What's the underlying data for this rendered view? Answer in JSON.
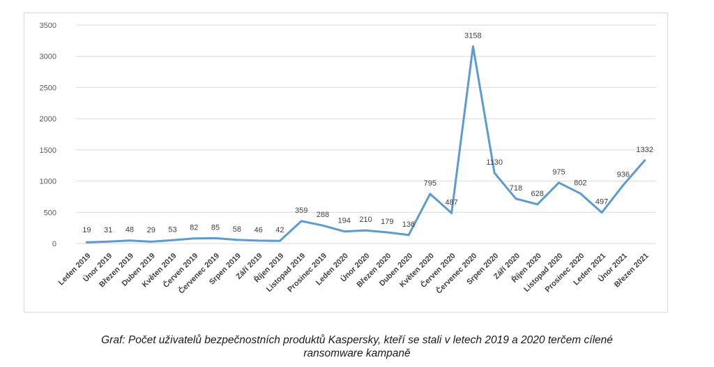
{
  "chart_data": {
    "type": "line",
    "categories": [
      "Leden 2019",
      "Únor 2019",
      "Březen 2019",
      "Duben 2019",
      "Květen 2019",
      "Červen 2019",
      "Červenec 2019",
      "Srpen 2019",
      "Září 2019",
      "Říjen 2019",
      "Listopad 2019",
      "Prosinec 2019",
      "Leden 2020",
      "Únor 2020",
      "Březen 2020",
      "Duben 2020",
      "Květen 2020",
      "Červen 2020",
      "Červenec 2020",
      "Srpen 2020",
      "Září 2020",
      "Říjen 2020",
      "Listopad 2020",
      "Prosinec 2020",
      "Leden 2021",
      "Únor 2021",
      "Březen 2021"
    ],
    "values": [
      19,
      31,
      48,
      29,
      53,
      82,
      85,
      58,
      46,
      42,
      359,
      288,
      194,
      210,
      179,
      136,
      795,
      487,
      3158,
      1130,
      718,
      628,
      975,
      802,
      497,
      936,
      1332
    ],
    "y_ticks": [
      0,
      500,
      1000,
      1500,
      2000,
      2500,
      3000,
      3500
    ],
    "ylim": [
      0,
      3500
    ],
    "grid": true,
    "title": "",
    "xlabel": "",
    "ylabel": "",
    "line_color": "#5b9bd5",
    "grid_color": "#d9d9d9"
  },
  "caption": {
    "line1": "Graf: Počet uživatelů bezpečnostních produktů Kaspersky, kteří se stali v letech 2019 a 2020 terčem cílené",
    "line2": "ransomware kampaně"
  }
}
